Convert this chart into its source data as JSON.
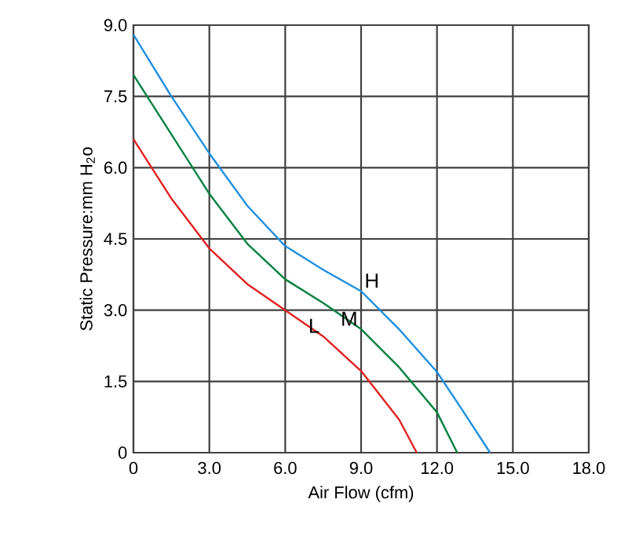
{
  "chart_data": {
    "type": "line",
    "xlabel": "Air Flow (cfm)",
    "ylabel": "Static Pressure:mm H$_{2}$o",
    "xlim": [
      0,
      18
    ],
    "ylim": [
      0,
      9
    ],
    "xticks": [
      0,
      {
        "value": 3,
        "label": "3.0"
      },
      {
        "value": 6,
        "label": "6.0"
      },
      {
        "value": 9,
        "label": "9.0"
      },
      {
        "value": 12,
        "label": "12.0"
      },
      {
        "value": 15,
        "label": "15.0"
      },
      {
        "value": 18,
        "label": "18.0"
      }
    ],
    "yticks": [
      0,
      1.5,
      {
        "value": 3,
        "label": "3.0"
      },
      4.5,
      {
        "value": 6,
        "label": "6.0"
      },
      7.5,
      {
        "value": 9,
        "label": "9.0"
      }
    ],
    "grid": true,
    "marker": "none",
    "line_style": "solid",
    "series": [
      {
        "name": "H",
        "color": "#1e8fe0",
        "x": [
          0,
          1.5,
          3,
          4.5,
          6,
          7.5,
          9,
          10.5,
          12,
          13,
          14.1
        ],
        "values": [
          8.8,
          7.5,
          6.3,
          5.2,
          4.35,
          3.85,
          3.4,
          2.6,
          1.7,
          0.9,
          0
        ]
      },
      {
        "name": "M",
        "color": "#008040",
        "x": [
          0,
          1.5,
          3,
          4.5,
          6,
          7.5,
          9,
          10.5,
          12,
          12.8
        ],
        "values": [
          7.95,
          6.7,
          5.45,
          4.4,
          3.65,
          3.15,
          2.6,
          1.8,
          0.85,
          0
        ]
      },
      {
        "name": "L",
        "color": "#e02020",
        "x": [
          0,
          1.5,
          3,
          4.5,
          6,
          7.5,
          9,
          10.5,
          11.2
        ],
        "values": [
          6.6,
          5.35,
          4.3,
          3.55,
          3.0,
          2.45,
          1.72,
          0.7,
          0
        ]
      }
    ]
  }
}
